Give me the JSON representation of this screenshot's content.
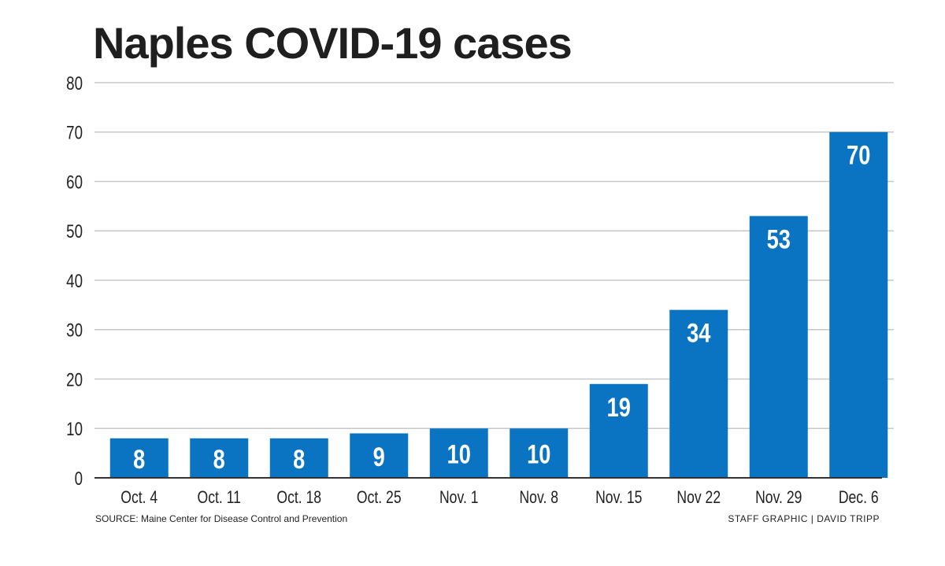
{
  "title": "Naples COVID-19 cases",
  "source": "SOURCE: Maine Center for Disease Control and Prevention",
  "credit": "STAFF GRAPHIC | DAVID TRIPP",
  "colors": {
    "bar": "#0a74c2",
    "grid": "#c8c8c8",
    "axis": "#333333",
    "label": "#ffffff",
    "text": "#222222"
  },
  "chart_data": {
    "type": "bar",
    "title": "Naples COVID-19 cases",
    "categories": [
      "Oct. 4",
      "Oct. 11",
      "Oct. 18",
      "Oct. 25",
      "Nov. 1",
      "Nov. 8",
      "Nov. 15",
      "Nov 22",
      "Nov. 29",
      "Dec. 6"
    ],
    "values": [
      8,
      8,
      8,
      9,
      10,
      10,
      19,
      34,
      53,
      70
    ],
    "ylim": [
      0,
      80
    ],
    "yticks": [
      0,
      10,
      20,
      30,
      40,
      50,
      60,
      70,
      80
    ],
    "xlabel": "",
    "ylabel": "",
    "grid": true,
    "data_labels": true
  }
}
